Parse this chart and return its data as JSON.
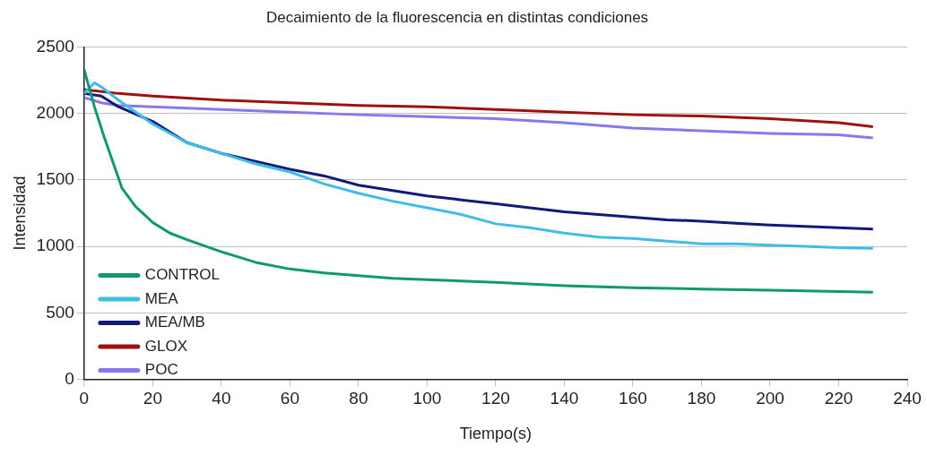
{
  "chart_data": {
    "type": "line",
    "title": "Decaimiento de la fluorescencia en distintas condiciones",
    "xlabel": "Tiempo(s)",
    "ylabel": "Intensidad",
    "xlim": [
      0,
      240
    ],
    "xticks": [
      0,
      20,
      40,
      60,
      80,
      100,
      120,
      140,
      160,
      180,
      200,
      220,
      240
    ],
    "ylim": [
      0,
      2500
    ],
    "yticks": [
      0,
      500,
      1000,
      1500,
      2000,
      2500
    ],
    "grid": "y",
    "legend": "bottom left",
    "line_style": "solid",
    "series": [
      {
        "name": "CONTROL",
        "color": "#109870",
        "x": [
          0,
          3,
          6,
          11,
          15,
          20,
          25,
          30,
          40,
          50,
          60,
          70,
          80,
          90,
          100,
          120,
          140,
          160,
          180,
          200,
          220,
          230
        ],
        "values": [
          2330,
          2050,
          1810,
          1440,
          1300,
          1180,
          1100,
          1050,
          960,
          880,
          830,
          800,
          780,
          760,
          750,
          730,
          705,
          690,
          680,
          670,
          660,
          655
        ]
      },
      {
        "name": "MEA",
        "color": "#3dbde8",
        "x": [
          0,
          3,
          5,
          10,
          20,
          30,
          40,
          50,
          60,
          70,
          80,
          90,
          100,
          110,
          120,
          130,
          140,
          150,
          160,
          170,
          180,
          190,
          200,
          210,
          220,
          230
        ],
        "values": [
          2150,
          2230,
          2200,
          2100,
          1920,
          1780,
          1700,
          1620,
          1560,
          1470,
          1400,
          1340,
          1290,
          1240,
          1170,
          1140,
          1100,
          1070,
          1060,
          1040,
          1020,
          1020,
          1010,
          1000,
          990,
          985
        ]
      },
      {
        "name": "MEA/MB",
        "color": "#0f1a7a",
        "x": [
          0,
          5,
          10,
          20,
          30,
          40,
          50,
          60,
          70,
          80,
          90,
          100,
          110,
          120,
          130,
          140,
          150,
          160,
          170,
          180,
          190,
          200,
          210,
          220,
          230
        ],
        "values": [
          2150,
          2130,
          2050,
          1940,
          1780,
          1700,
          1640,
          1580,
          1530,
          1460,
          1420,
          1380,
          1350,
          1320,
          1290,
          1260,
          1240,
          1220,
          1200,
          1190,
          1175,
          1160,
          1150,
          1140,
          1130
        ]
      },
      {
        "name": "GLOX",
        "color": "#a01010",
        "x": [
          0,
          10,
          20,
          40,
          60,
          80,
          100,
          120,
          140,
          160,
          180,
          200,
          220,
          230
        ],
        "values": [
          2180,
          2150,
          2130,
          2100,
          2080,
          2060,
          2050,
          2030,
          2010,
          1990,
          1980,
          1960,
          1930,
          1900
        ]
      },
      {
        "name": "POC",
        "color": "#8878f0",
        "x": [
          0,
          5,
          10,
          20,
          40,
          60,
          80,
          100,
          120,
          140,
          160,
          180,
          200,
          220,
          230
        ],
        "values": [
          2120,
          2080,
          2060,
          2050,
          2030,
          2010,
          1990,
          1975,
          1960,
          1930,
          1890,
          1870,
          1850,
          1840,
          1815
        ]
      }
    ]
  }
}
